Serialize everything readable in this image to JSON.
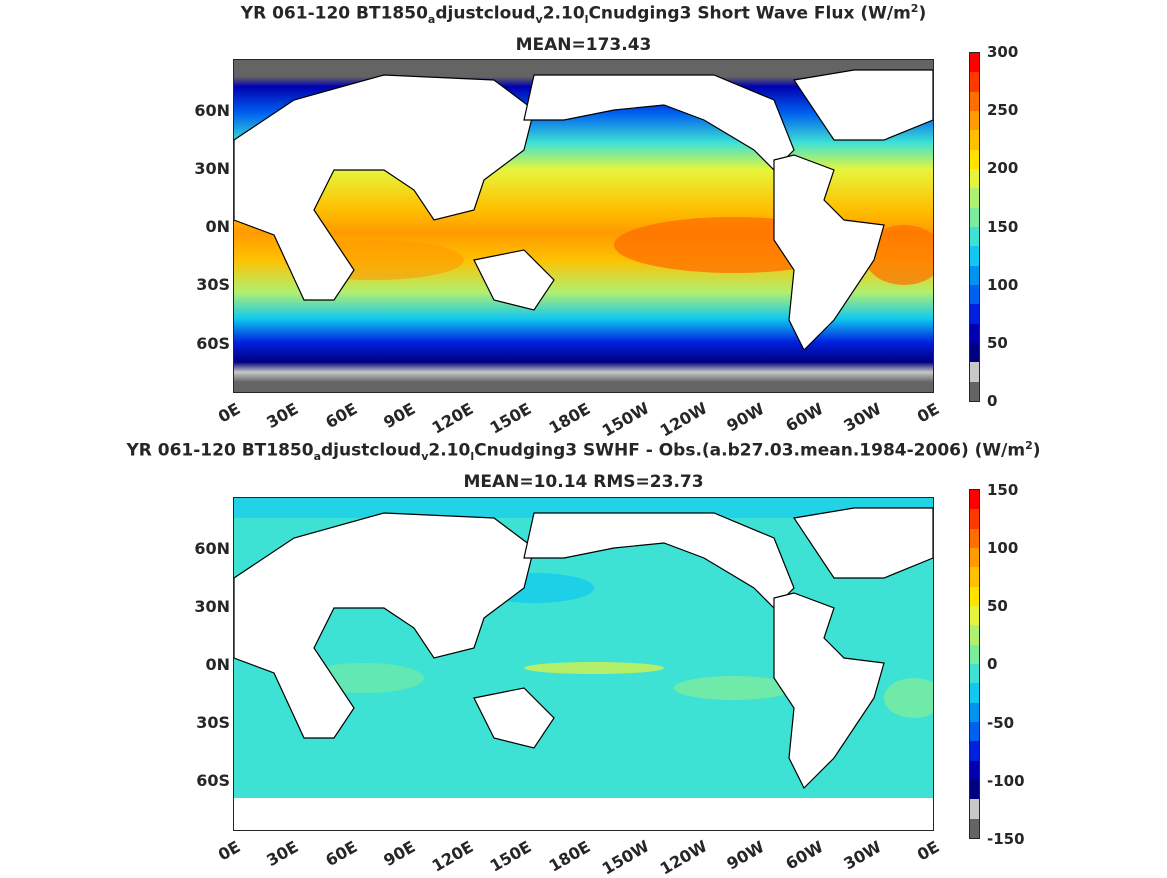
{
  "panels": [
    {
      "title_main": "YR 061-120 BT1850",
      "title_sub1": "a",
      "title_mid": "djustcloud",
      "title_sub2": "v",
      "title_mid2": "2.10",
      "title_sub3": "l",
      "title_end": "Cnudging3  Short Wave Flux (W/m",
      "title_sup": "2",
      "title_close": ")",
      "subtitle": "MEAN=173.43",
      "colorbar_ticks": [
        "300",
        "250",
        "200",
        "150",
        "100",
        "50",
        "0"
      ],
      "colorbar_colors": [
        "#ff0000",
        "#ff3a00",
        "#ff6e00",
        "#ff9a00",
        "#ffc000",
        "#ffe200",
        "#e6f53c",
        "#b0f070",
        "#7cec9c",
        "#3ee2d4",
        "#10c8f0",
        "#0094f0",
        "#0060f0",
        "#0020e0",
        "#0000b0",
        "#000080",
        "#c8c8c8",
        "#646464"
      ],
      "mean": 173.43
    },
    {
      "title_main": "YR 061-120 BT1850",
      "title_sub1": "a",
      "title_mid": "djustcloud",
      "title_sub2": "v",
      "title_mid2": "2.10",
      "title_sub3": "l",
      "title_end": "Cnudging3 SWHF - Obs.(a.b27.03.mean.1984-2006) (W/m",
      "title_sup": "2",
      "title_close": ")",
      "subtitle": "MEAN=10.14 RMS=23.73",
      "colorbar_ticks": [
        "150",
        "100",
        "50",
        "0",
        "-50",
        "-100",
        "-150"
      ],
      "colorbar_colors": [
        "#ff0000",
        "#ff3a00",
        "#ff6e00",
        "#ff9a00",
        "#ffc000",
        "#ffe200",
        "#e6f53c",
        "#b0f070",
        "#7cec9c",
        "#3ee2d4",
        "#10c8f0",
        "#0094f0",
        "#0060f0",
        "#0020e0",
        "#0000b0",
        "#000080",
        "#c8c8c8",
        "#646464"
      ],
      "mean": 10.14,
      "rms": 23.73
    }
  ],
  "lat_ticks": [
    "60N",
    "30N",
    "0N",
    "30S",
    "60S"
  ],
  "lon_ticks": [
    "0E",
    "30E",
    "60E",
    "90E",
    "120E",
    "150E",
    "180E",
    "150W",
    "120W",
    "90W",
    "60W",
    "30W",
    "0E"
  ]
}
